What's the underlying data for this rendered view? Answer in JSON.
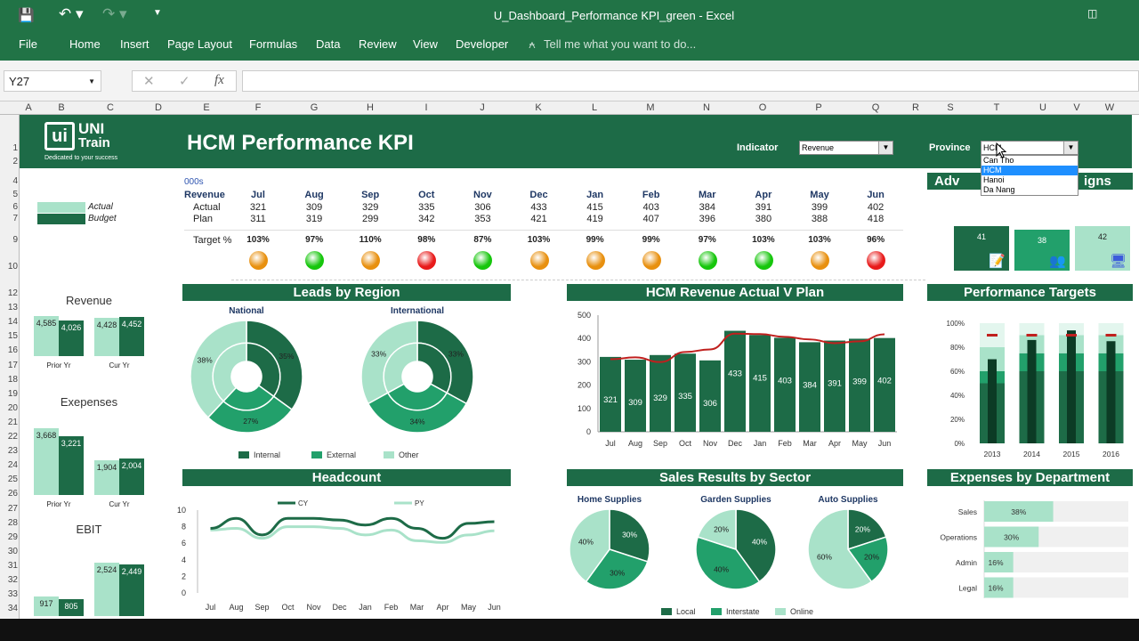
{
  "window": {
    "title": "U_Dashboard_Performance KPI_green - Excel",
    "qat": [
      "save-icon",
      "undo-icon",
      "redo-icon",
      "customize-icon"
    ]
  },
  "ribbon": {
    "tabs": [
      "File",
      "Home",
      "Insert",
      "Page Layout",
      "Formulas",
      "Data",
      "Review",
      "View",
      "Developer"
    ],
    "tell_me": "Tell me what you want to do..."
  },
  "formula_bar": {
    "name_box": "Y27",
    "value": "",
    "fx": "fx"
  },
  "columns": [
    "A",
    "B",
    "C",
    "D",
    "E",
    "F",
    "G",
    "H",
    "I",
    "J",
    "K",
    "L",
    "M",
    "N",
    "O",
    "P",
    "Q",
    "R",
    "S",
    "T",
    "U",
    "V",
    "W"
  ],
  "rows": [
    "1",
    "2",
    "4",
    "5",
    "6",
    "7",
    "9",
    "10",
    "12",
    "13",
    "14",
    "15",
    "16",
    "17",
    "18",
    "19",
    "20",
    "21",
    "22",
    "23",
    "24",
    "25",
    "26",
    "27",
    "28",
    "29",
    "30",
    "31",
    "32",
    "33",
    "34"
  ],
  "colors": {
    "dark": "#1d6b47",
    "mid": "#22a06b",
    "light": "#a9e2c9",
    "accent_red": "#c0201e",
    "excel": "#217346"
  },
  "header": {
    "logo_top": "UNI",
    "logo_bottom": "Train",
    "logo_tag": "Dedicated to your success",
    "title": "HCM Performance KPI",
    "indicator_label": "Indicator",
    "indicator_value": "Revenue",
    "province_label": "Province",
    "province_value": "HCM",
    "province_options": [
      "Can Tho",
      "HCM",
      "Hanoi",
      "Da Nang"
    ],
    "province_selected": "HCM"
  },
  "legend_left": {
    "actual": "Actual",
    "budget": "Budget"
  },
  "kpis": [
    {
      "title": "Revenue",
      "groups": [
        {
          "label": "Prior Yr",
          "actual": "4,585",
          "budget": "4,026",
          "a": 4585,
          "b": 4026
        },
        {
          "label": "Cur Yr",
          "actual": "4,428",
          "budget": "4,452",
          "a": 4428,
          "b": 4452
        }
      ]
    },
    {
      "title": "Exepenses",
      "groups": [
        {
          "label": "Prior Yr",
          "actual": "3,668",
          "budget": "3,221",
          "a": 3668,
          "b": 3221
        },
        {
          "label": "Cur Yr",
          "actual": "1,904",
          "budget": "2,004",
          "a": 1904,
          "b": 2004
        }
      ]
    },
    {
      "title": "EBIT",
      "groups": [
        {
          "label": "Prior Yr",
          "actual": "917",
          "budget": "805",
          "a": 917,
          "b": 805
        },
        {
          "label": "Cur Yr",
          "actual": "2,524",
          "budget": "2,449",
          "a": 2524,
          "b": 2449
        }
      ]
    }
  ],
  "table": {
    "unit": "000s",
    "row_header": "Revenue",
    "actual_label": "Actual",
    "plan_label": "Plan",
    "target_label": "Target %",
    "months": [
      "Jul",
      "Aug",
      "Sep",
      "Oct",
      "Nov",
      "Dec",
      "Jan",
      "Feb",
      "Mar",
      "Apr",
      "May",
      "Jun"
    ],
    "actual": [
      "321",
      "309",
      "329",
      "335",
      "306",
      "433",
      "415",
      "403",
      "384",
      "391",
      "399",
      "402"
    ],
    "plan": [
      "311",
      "319",
      "299",
      "342",
      "353",
      "421",
      "419",
      "407",
      "396",
      "380",
      "388",
      "418"
    ],
    "target": [
      "103%",
      "97%",
      "110%",
      "98%",
      "87%",
      "103%",
      "99%",
      "99%",
      "97%",
      "103%",
      "103%",
      "96%"
    ],
    "status": [
      "orange",
      "green",
      "orange",
      "red",
      "green",
      "orange",
      "orange",
      "orange",
      "green",
      "green",
      "orange",
      "red"
    ]
  },
  "status_colors": {
    "orange": "#e8900f",
    "green": "#16c60c",
    "red": "#e81b1b"
  },
  "campaigns": {
    "title": "Advertising Campaigns",
    "title_visible_left": "Adv",
    "title_visible_right": "igns",
    "items": [
      {
        "value": "41",
        "icon": "document-edit-icon"
      },
      {
        "value": "38",
        "icon": "people-icon"
      },
      {
        "value": "42",
        "icon": "monitor-icon"
      }
    ]
  },
  "sections": {
    "leads": "Leads by Region",
    "revenue": "HCM Revenue Actual V Plan",
    "targets": "Performance Targets",
    "headcount": "Headcount",
    "sales": "Sales Results by Sector",
    "expenses": "Expenses by Department"
  },
  "chart_data": [
    {
      "id": "leads",
      "type": "pie",
      "subcharts": [
        {
          "title": "National",
          "values": [
            35,
            27,
            38
          ],
          "labels": [
            "35%",
            "27%",
            "38%"
          ]
        },
        {
          "title": "International",
          "values": [
            33,
            34,
            33
          ],
          "labels": [
            "33%",
            "34%",
            "33%"
          ]
        }
      ],
      "legend": [
        "Internal",
        "External",
        "Other"
      ],
      "legend_placement": "bottom"
    },
    {
      "id": "revenue",
      "type": "bar",
      "categories": [
        "Jul",
        "Aug",
        "Sep",
        "Oct",
        "Nov",
        "Dec",
        "Jan",
        "Feb",
        "Mar",
        "Apr",
        "May",
        "Jun"
      ],
      "series": [
        {
          "type": "bar",
          "values": [
            321,
            309,
            329,
            335,
            306,
            433,
            415,
            403,
            384,
            391,
            399,
            402
          ]
        },
        {
          "type": "line",
          "values": [
            311,
            319,
            299,
            342,
            353,
            421,
            419,
            407,
            396,
            380,
            388,
            418
          ]
        }
      ],
      "ylim": [
        0,
        500
      ],
      "yticks": [
        "0",
        "100",
        "200",
        "300",
        "400",
        "500"
      ]
    },
    {
      "id": "targets",
      "type": "bar",
      "categories": [
        "2013",
        "2014",
        "2015",
        "2016"
      ],
      "bands": [
        [
          50,
          60,
          80,
          100
        ],
        [
          60,
          75,
          90,
          100
        ],
        [
          60,
          75,
          90,
          100
        ],
        [
          60,
          75,
          90,
          100
        ]
      ],
      "actual": [
        70,
        86,
        94,
        85
      ],
      "target": [
        90,
        90,
        90,
        90
      ],
      "ylim": [
        0,
        100
      ],
      "yticks": [
        "0%",
        "20%",
        "40%",
        "60%",
        "80%",
        "100%"
      ]
    },
    {
      "id": "headcount",
      "type": "line",
      "categories": [
        "Jul",
        "Aug",
        "Sep",
        "Oct",
        "Nov",
        "Dec",
        "Jan",
        "Feb",
        "Mar",
        "Apr",
        "May",
        "Jun"
      ],
      "series": [
        {
          "name": "CY",
          "values": [
            7.8,
            9,
            7,
            9,
            9,
            8.8,
            8.2,
            9,
            7.8,
            6.6,
            8.4,
            8.6
          ]
        },
        {
          "name": "PY",
          "values": [
            7.6,
            7.8,
            6.6,
            8,
            8,
            7.8,
            7,
            7.6,
            6.3,
            6.1,
            7,
            7.5
          ]
        }
      ],
      "ylim": [
        0,
        10
      ],
      "yticks": [
        "0",
        "2",
        "4",
        "6",
        "8",
        "10"
      ]
    },
    {
      "id": "sales",
      "type": "pie",
      "subcharts": [
        {
          "title": "Home Supplies",
          "values": [
            30,
            30,
            40
          ],
          "labels": [
            "30%",
            "30%",
            "40%"
          ]
        },
        {
          "title": "Garden Supplies",
          "values": [
            40,
            40,
            20
          ],
          "labels": [
            "40%",
            "40%",
            "20%"
          ]
        },
        {
          "title": "Auto Supplies",
          "values": [
            20,
            20,
            60
          ],
          "labels": [
            "20%",
            "20%",
            "60%"
          ]
        }
      ],
      "legend": [
        "Local",
        "Interstate",
        "Online"
      ],
      "legend_placement": "bottom"
    },
    {
      "id": "expenses",
      "type": "bar",
      "orientation": "horizontal",
      "categories": [
        "Sales",
        "Operations",
        "Admin",
        "Legal"
      ],
      "values": [
        38,
        30,
        16,
        16
      ],
      "labels": [
        "38%",
        "30%",
        "16%",
        "16%"
      ],
      "xlim": [
        0,
        100
      ]
    }
  ]
}
